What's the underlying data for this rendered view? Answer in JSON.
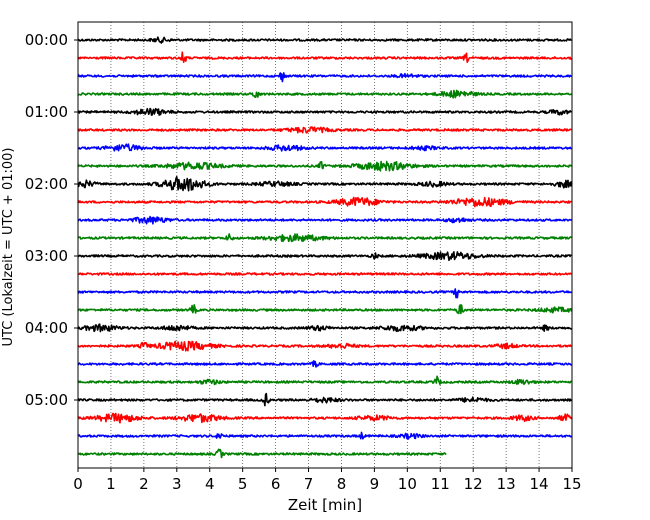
{
  "chart_data": {
    "type": "line",
    "subtype": "seismogram-helicorder",
    "title": "",
    "xlabel": "Zeit  [min]",
    "ylabel": "UTC (Lokalzeit = UTC + 01:00)",
    "xlim": [
      0,
      15
    ],
    "x_ticks": [
      0,
      1,
      2,
      3,
      4,
      5,
      6,
      7,
      8,
      9,
      10,
      11,
      12,
      13,
      14,
      15
    ],
    "y_ticks": [
      "00:00",
      "01:00",
      "02:00",
      "03:00",
      "04:00",
      "05:00"
    ],
    "trace_interval_minutes": 15,
    "trace_color_cycle": [
      "#000000",
      "#ff0000",
      "#0000ff",
      "#008000"
    ],
    "vertical_grid": "dotted",
    "traces": [
      {
        "start": "00:00",
        "color": "#000000",
        "end_min": 15,
        "events": [
          [
            2.5,
            0.25,
            2
          ]
        ]
      },
      {
        "start": "00:15",
        "color": "#ff0000",
        "end_min": 15,
        "events": [
          [
            3.2,
            0.08,
            6
          ],
          [
            11.8,
            0.08,
            4
          ]
        ]
      },
      {
        "start": "00:30",
        "color": "#0000ff",
        "end_min": 15,
        "events": [
          [
            6.2,
            0.08,
            5
          ],
          [
            10.0,
            0.3,
            1.5
          ]
        ]
      },
      {
        "start": "00:45",
        "color": "#008000",
        "end_min": 15,
        "events": [
          [
            5.4,
            0.08,
            5
          ],
          [
            11.5,
            0.5,
            3
          ]
        ]
      },
      {
        "start": "01:00",
        "color": "#000000",
        "end_min": 15,
        "events": [
          [
            2.2,
            0.5,
            3
          ],
          [
            14.6,
            0.3,
            2
          ]
        ]
      },
      {
        "start": "01:15",
        "color": "#ff0000",
        "end_min": 15,
        "events": [
          [
            7.0,
            0.6,
            2.5
          ]
        ]
      },
      {
        "start": "01:30",
        "color": "#0000ff",
        "end_min": 15,
        "events": [
          [
            1.4,
            0.5,
            3
          ],
          [
            6.3,
            0.5,
            2.5
          ],
          [
            10.5,
            0.4,
            1.5
          ]
        ]
      },
      {
        "start": "01:45",
        "color": "#008000",
        "end_min": 15,
        "events": [
          [
            3.5,
            0.8,
            3
          ],
          [
            7.4,
            0.08,
            4
          ],
          [
            9.3,
            0.8,
            4
          ]
        ]
      },
      {
        "start": "02:00",
        "color": "#000000",
        "end_min": 15,
        "events": [
          [
            0.2,
            0.3,
            3
          ],
          [
            3.2,
            0.6,
            7
          ],
          [
            6.0,
            0.5,
            2
          ],
          [
            10.8,
            0.4,
            2
          ],
          [
            14.8,
            0.3,
            3
          ]
        ]
      },
      {
        "start": "02:15",
        "color": "#ff0000",
        "end_min": 15,
        "events": [
          [
            8.5,
            0.6,
            4
          ],
          [
            12.2,
            0.8,
            4
          ]
        ]
      },
      {
        "start": "02:30",
        "color": "#0000ff",
        "end_min": 15,
        "events": [
          [
            2.2,
            0.5,
            3
          ],
          [
            11.5,
            0.3,
            2
          ]
        ]
      },
      {
        "start": "02:45",
        "color": "#008000",
        "end_min": 15,
        "events": [
          [
            4.6,
            0.08,
            4
          ],
          [
            6.6,
            0.8,
            3
          ]
        ]
      },
      {
        "start": "03:00",
        "color": "#000000",
        "end_min": 15,
        "events": [
          [
            9.0,
            0.08,
            3
          ],
          [
            11.3,
            0.8,
            3.5
          ]
        ]
      },
      {
        "start": "03:15",
        "color": "#ff0000",
        "end_min": 15,
        "events": []
      },
      {
        "start": "03:30",
        "color": "#0000ff",
        "end_min": 15,
        "events": [
          [
            11.5,
            0.08,
            5
          ]
        ]
      },
      {
        "start": "03:45",
        "color": "#008000",
        "end_min": 15,
        "events": [
          [
            3.5,
            0.08,
            5
          ],
          [
            11.6,
            0.08,
            6
          ],
          [
            14.5,
            0.5,
            2
          ]
        ]
      },
      {
        "start": "04:00",
        "color": "#000000",
        "end_min": 15,
        "events": [
          [
            0.7,
            0.5,
            3
          ],
          [
            3.0,
            0.4,
            2.5
          ],
          [
            7.3,
            0.3,
            2
          ],
          [
            9.8,
            0.6,
            2.5
          ],
          [
            14.2,
            0.08,
            3
          ]
        ]
      },
      {
        "start": "04:15",
        "color": "#ff0000",
        "end_min": 15,
        "events": [
          [
            2.0,
            0.08,
            4
          ],
          [
            3.2,
            0.8,
            4
          ],
          [
            8.0,
            0.4,
            2
          ],
          [
            13.0,
            0.3,
            2
          ]
        ]
      },
      {
        "start": "04:30",
        "color": "#0000ff",
        "end_min": 15,
        "events": [
          [
            7.2,
            0.08,
            3
          ]
        ]
      },
      {
        "start": "04:45",
        "color": "#008000",
        "end_min": 15,
        "events": [
          [
            4.0,
            0.3,
            2
          ],
          [
            10.9,
            0.08,
            5
          ],
          [
            13.5,
            0.3,
            2
          ]
        ]
      },
      {
        "start": "05:00",
        "color": "#000000",
        "end_min": 15,
        "events": [
          [
            5.7,
            0.08,
            6
          ],
          [
            7.5,
            0.4,
            2
          ],
          [
            12.0,
            0.4,
            2
          ]
        ]
      },
      {
        "start": "05:15",
        "color": "#ff0000",
        "end_min": 15,
        "events": [
          [
            1.2,
            0.6,
            4
          ],
          [
            3.7,
            0.6,
            3.5
          ],
          [
            9.0,
            0.5,
            2
          ],
          [
            13.5,
            0.3,
            2.5
          ],
          [
            14.8,
            0.2,
            3
          ]
        ]
      },
      {
        "start": "05:30",
        "color": "#0000ff",
        "end_min": 15,
        "events": [
          [
            4.3,
            0.08,
            4
          ],
          [
            8.6,
            0.08,
            3
          ],
          [
            10.1,
            0.3,
            2
          ]
        ]
      },
      {
        "start": "05:45",
        "color": "#008000",
        "end_min": 11.2,
        "events": [
          [
            4.3,
            0.08,
            5
          ]
        ]
      }
    ]
  }
}
